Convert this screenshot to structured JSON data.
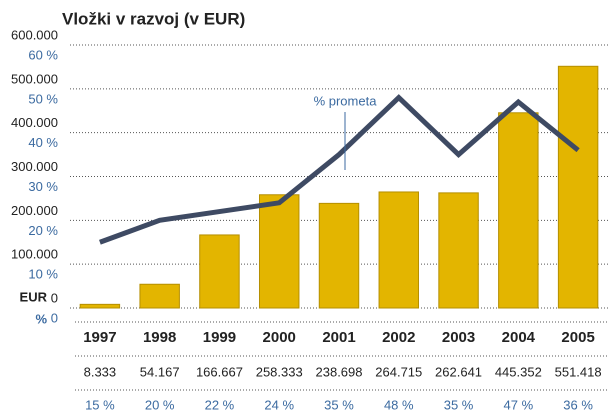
{
  "chart_data": {
    "type": "bar_line",
    "title": "Vložki v razvoj (v EUR)",
    "y_label": "EUR",
    "y2_label": "%",
    "categories": [
      "1997",
      "1998",
      "1999",
      "2000",
      "2001",
      "2002",
      "2003",
      "2004",
      "2005"
    ],
    "series": [
      {
        "type": "bar",
        "color": "#e3b500",
        "values": [
          8333,
          54167,
          166667,
          258333,
          238698,
          264715,
          262641,
          445352,
          551418
        ],
        "value_labels": [
          "8.333",
          "54.167",
          "166.667",
          "258.333",
          "238.698",
          "264.715",
          "262.641",
          "445.352",
          "551.418"
        ]
      },
      {
        "type": "line",
        "name": "% prometa",
        "axis": "y2",
        "color": "#3e4a63",
        "values": [
          15,
          20,
          22,
          24,
          35,
          48,
          35,
          47,
          36
        ],
        "value_labels": [
          "15 %",
          "20 %",
          "22 %",
          "24 %",
          "35 %",
          "48 %",
          "35 %",
          "47 %",
          "36 %"
        ]
      }
    ],
    "ylim": [
      0,
      600000
    ],
    "yticks": [
      0,
      {
        "value": 100000,
        "label": "100.000"
      },
      {
        "value": 200000,
        "label": "200.000"
      },
      {
        "value": 300000,
        "label": "300.000"
      },
      {
        "value": 400000,
        "label": "400.000"
      },
      {
        "value": 500000,
        "label": "500.000"
      },
      {
        "value": 600000,
        "label": "600.000"
      }
    ],
    "y2lim": [
      0,
      60
    ],
    "y2ticks": [
      0,
      {
        "value": 10,
        "label": "10 %"
      },
      {
        "value": 20,
        "label": "20 %"
      },
      {
        "value": 30,
        "label": "30 %"
      },
      {
        "value": 40,
        "label": "40 %"
      },
      {
        "value": 50,
        "label": "50 %"
      },
      {
        "value": 60,
        "label": "60 %"
      }
    ],
    "grid": true
  }
}
